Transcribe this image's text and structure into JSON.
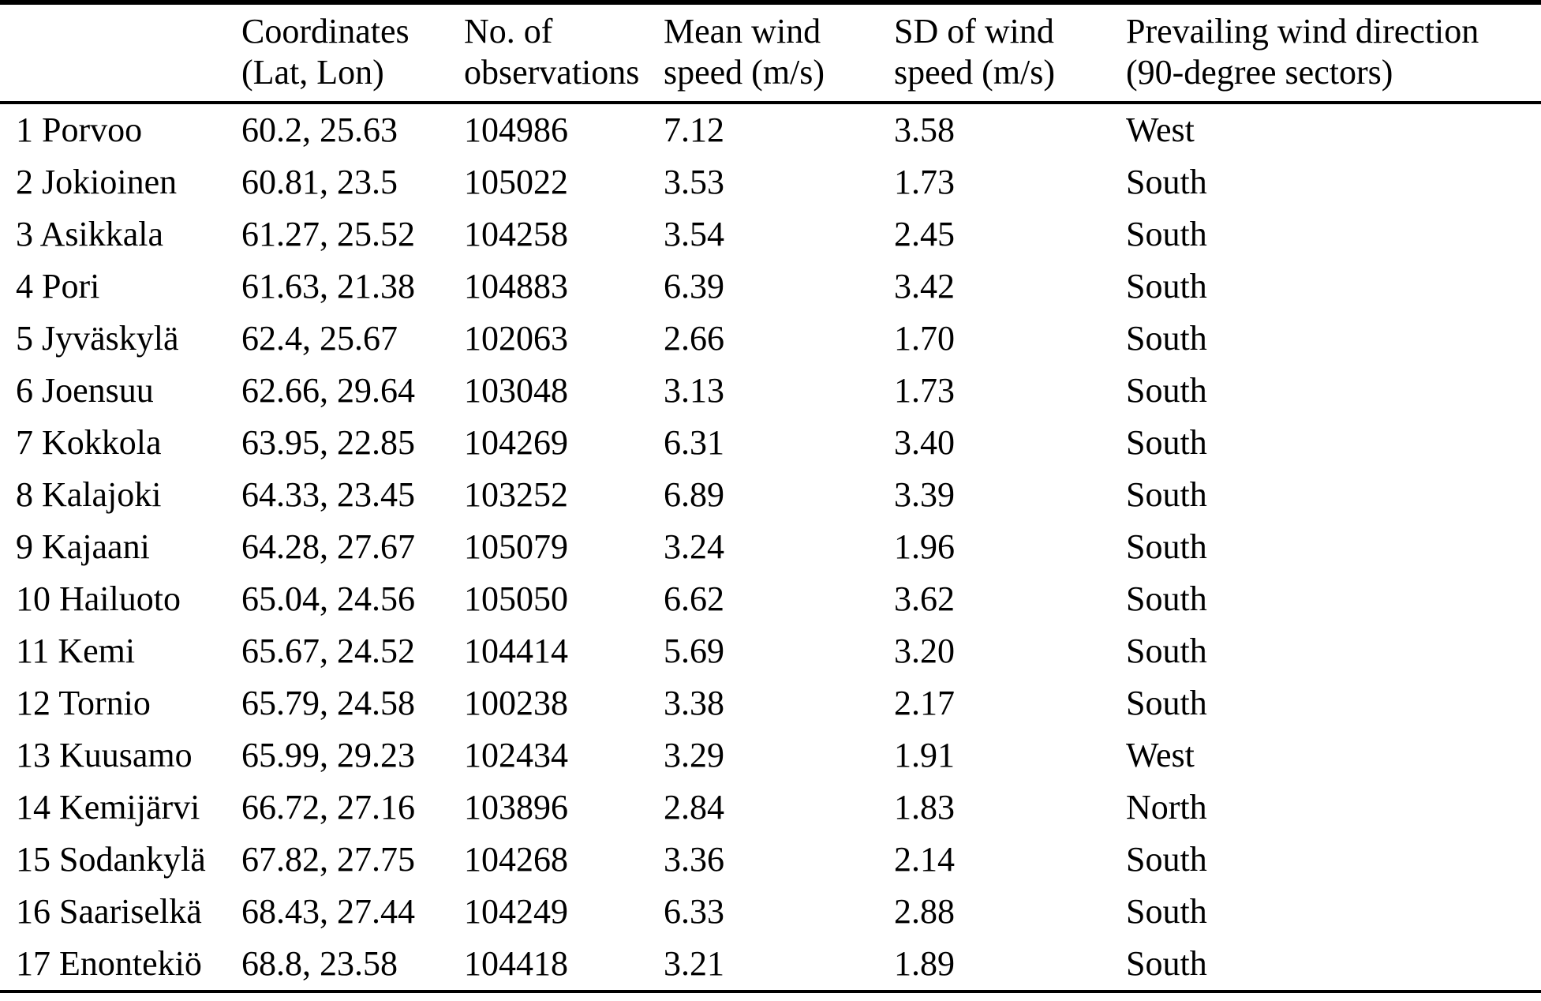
{
  "table": {
    "headers": {
      "station": "",
      "coordinates_line1": "Coordinates",
      "coordinates_line2": "(Lat, Lon)",
      "observations_line1": "No. of",
      "observations_line2": "observations",
      "mean_line1": "Mean wind",
      "mean_line2": "speed (m/s)",
      "sd_line1": "SD of wind",
      "sd_line2": "speed (m/s)",
      "direction_line1": "Prevailing wind direction",
      "direction_line2": "(90-degree sectors)"
    },
    "rows": [
      {
        "station": "1 Porvoo",
        "coordinates": "60.2, 25.63",
        "observations": "104986",
        "mean_wind_speed": "7.12",
        "sd_wind_speed": "3.58",
        "direction": "West"
      },
      {
        "station": "2 Jokioinen",
        "coordinates": "60.81, 23.5",
        "observations": "105022",
        "mean_wind_speed": "3.53",
        "sd_wind_speed": "1.73",
        "direction": "South"
      },
      {
        "station": "3 Asikkala",
        "coordinates": "61.27, 25.52",
        "observations": "104258",
        "mean_wind_speed": "3.54",
        "sd_wind_speed": "2.45",
        "direction": "South"
      },
      {
        "station": "4 Pori",
        "coordinates": "61.63, 21.38",
        "observations": "104883",
        "mean_wind_speed": "6.39",
        "sd_wind_speed": "3.42",
        "direction": "South"
      },
      {
        "station": "5 Jyväskylä",
        "coordinates": "62.4, 25.67",
        "observations": "102063",
        "mean_wind_speed": "2.66",
        "sd_wind_speed": "1.70",
        "direction": "South"
      },
      {
        "station": "6 Joensuu",
        "coordinates": "62.66, 29.64",
        "observations": "103048",
        "mean_wind_speed": "3.13",
        "sd_wind_speed": "1.73",
        "direction": "South"
      },
      {
        "station": "7 Kokkola",
        "coordinates": "63.95, 22.85",
        "observations": "104269",
        "mean_wind_speed": "6.31",
        "sd_wind_speed": "3.40",
        "direction": "South"
      },
      {
        "station": "8 Kalajoki",
        "coordinates": "64.33, 23.45",
        "observations": "103252",
        "mean_wind_speed": "6.89",
        "sd_wind_speed": "3.39",
        "direction": "South"
      },
      {
        "station": "9 Kajaani",
        "coordinates": "64.28, 27.67",
        "observations": "105079",
        "mean_wind_speed": "3.24",
        "sd_wind_speed": "1.96",
        "direction": "South"
      },
      {
        "station": "10 Hailuoto",
        "coordinates": "65.04, 24.56",
        "observations": "105050",
        "mean_wind_speed": "6.62",
        "sd_wind_speed": "3.62",
        "direction": "South"
      },
      {
        "station": "11 Kemi",
        "coordinates": "65.67, 24.52",
        "observations": "104414",
        "mean_wind_speed": "5.69",
        "sd_wind_speed": "3.20",
        "direction": "South"
      },
      {
        "station": "12 Tornio",
        "coordinates": "65.79, 24.58",
        "observations": "100238",
        "mean_wind_speed": "3.38",
        "sd_wind_speed": "2.17",
        "direction": "South"
      },
      {
        "station": "13 Kuusamo",
        "coordinates": "65.99, 29.23",
        "observations": "102434",
        "mean_wind_speed": "3.29",
        "sd_wind_speed": "1.91",
        "direction": "West"
      },
      {
        "station": "14 Kemijärvi",
        "coordinates": "66.72, 27.16",
        "observations": "103896",
        "mean_wind_speed": "2.84",
        "sd_wind_speed": "1.83",
        "direction": "North"
      },
      {
        "station": "15 Sodankylä",
        "coordinates": "67.82, 27.75",
        "observations": "104268",
        "mean_wind_speed": "3.36",
        "sd_wind_speed": "2.14",
        "direction": "South"
      },
      {
        "station": "16 Saariselkä",
        "coordinates": "68.43, 27.44",
        "observations": "104249",
        "mean_wind_speed": "6.33",
        "sd_wind_speed": "2.88",
        "direction": "South"
      },
      {
        "station": "17 Enontekiö",
        "coordinates": "68.8, 23.58",
        "observations": "104418",
        "mean_wind_speed": "3.21",
        "sd_wind_speed": "1.89",
        "direction": "South"
      }
    ]
  },
  "colors": {
    "text": "#000000",
    "background": "#ffffff",
    "rule": "#000000"
  }
}
